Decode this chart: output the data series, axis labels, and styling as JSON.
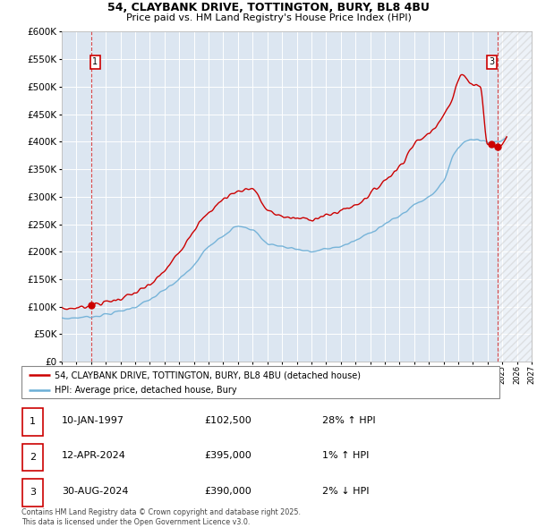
{
  "title1": "54, CLAYBANK DRIVE, TOTTINGTON, BURY, BL8 4BU",
  "title2": "Price paid vs. HM Land Registry's House Price Index (HPI)",
  "bg_color": "#dce6f1",
  "hpi_color": "#6baed6",
  "price_color": "#cc0000",
  "legend_label_price": "54, CLAYBANK DRIVE, TOTTINGTON, BURY, BL8 4BU (detached house)",
  "legend_label_hpi": "HPI: Average price, detached house, Bury",
  "ylabel_max": 600000,
  "ytick_step": 50000,
  "table_rows": [
    {
      "num": "1",
      "date": "10-JAN-1997",
      "price": "£102,500",
      "change": "28% ↑ HPI"
    },
    {
      "num": "2",
      "date": "12-APR-2024",
      "price": "£395,000",
      "change": "1% ↑ HPI"
    },
    {
      "num": "3",
      "date": "30-AUG-2024",
      "price": "£390,000",
      "change": "2% ↓ HPI"
    }
  ],
  "footer": "Contains HM Land Registry data © Crown copyright and database right 2025.\nThis data is licensed under the Open Government Licence v3.0.",
  "sale1_year": 1997.04,
  "sale1_price": 102500,
  "sale2_year": 2024.28,
  "sale2_price": 395000,
  "sale3_year": 2024.67,
  "sale3_price": 390000,
  "xmin": 1995,
  "xmax": 2027,
  "future_shade_start": 2024.67
}
